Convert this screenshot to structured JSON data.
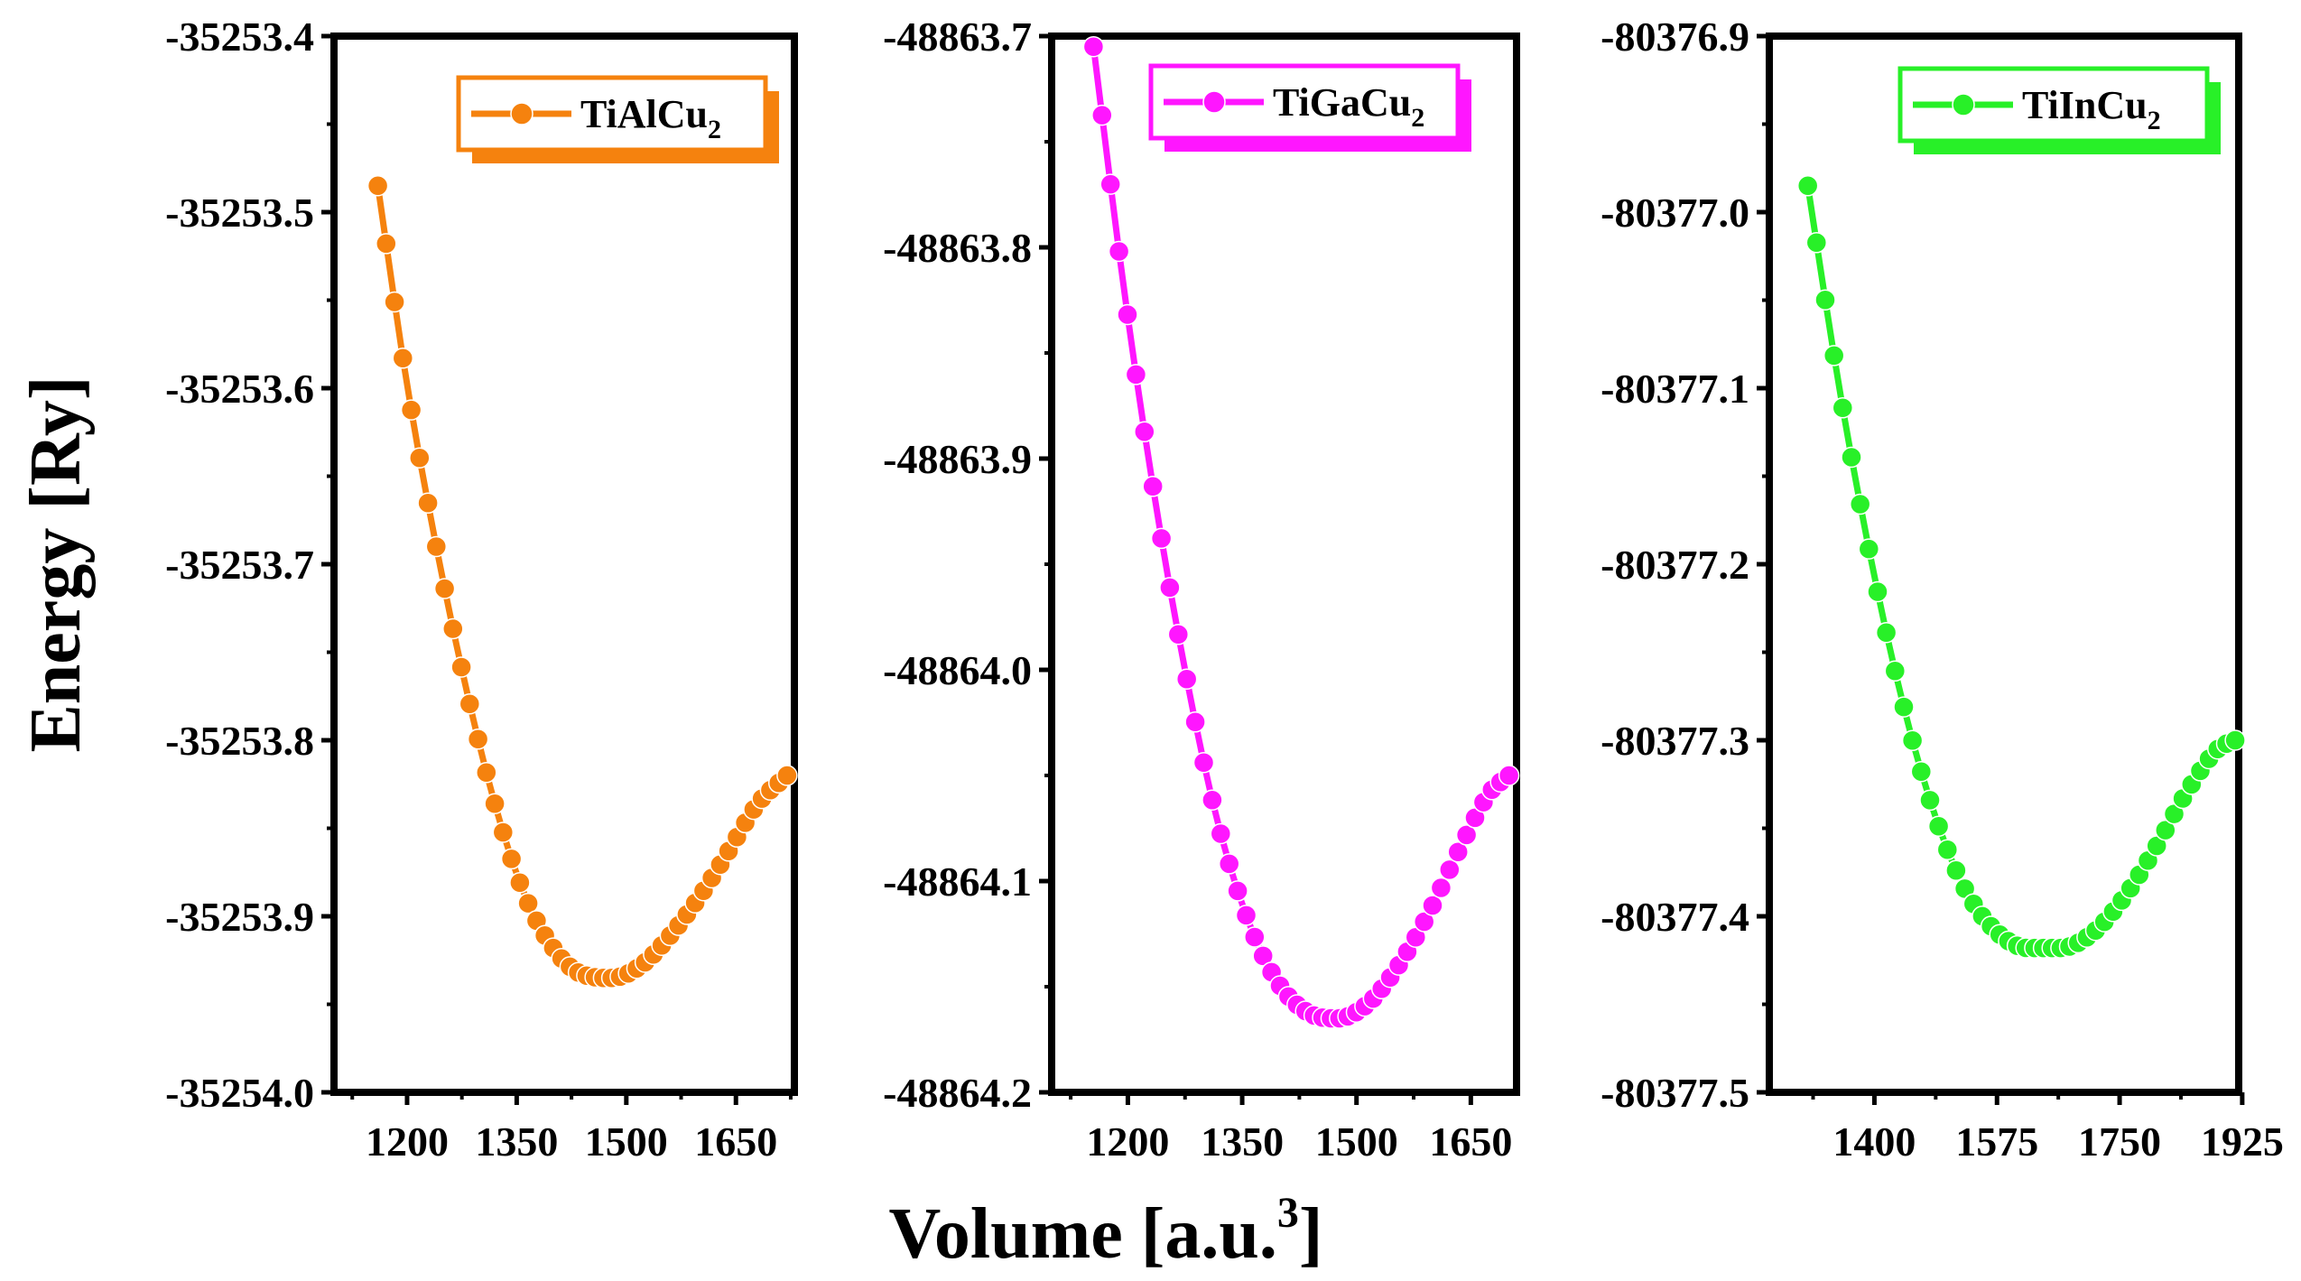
{
  "figure": {
    "ylabel": "Energy [Ry]",
    "xlabel_main": "Volume [a.u.",
    "xlabel_sup": "3",
    "xlabel_end": "]"
  },
  "chart_data": [
    {
      "type": "line",
      "series_name": "TiAlCu2",
      "legend_main": "TiAlCu",
      "legend_sub": "2",
      "color": "#F5820E",
      "xlim": [
        1100,
        1730
      ],
      "ylim": [
        -35254.0,
        -35253.4
      ],
      "xticks": [
        1200,
        1350,
        1500,
        1650
      ],
      "xtick_labels": [
        "1200",
        "1350",
        "1500",
        "1650"
      ],
      "yticks": [
        -35253.4,
        -35253.5,
        -35253.6,
        -35253.7,
        -35253.8,
        -35253.9,
        -35254.0
      ],
      "ytick_labels": [
        "-35253.4",
        "-35253.5",
        "-35253.6",
        "-35253.7",
        "-35253.8",
        "-35253.9",
        "-35254.0"
      ],
      "x_range": [
        1160,
        1720
      ],
      "x_min": 1490,
      "y_min": -35253.935,
      "points": 50,
      "x": [
        1160,
        1200,
        1240,
        1280,
        1320,
        1360,
        1400,
        1440,
        1480,
        1520,
        1560,
        1600,
        1640,
        1680,
        1720
      ],
      "y": [
        -35253.485,
        -35253.598,
        -35253.69,
        -35253.769,
        -35253.836,
        -35253.887,
        -35253.918,
        -35253.933,
        -35253.935,
        -35253.928,
        -35253.911,
        -35253.889,
        -35253.863,
        -35253.836,
        -35253.82
      ]
    },
    {
      "type": "line",
      "series_name": "TiGaCu2",
      "legend_main": "TiGaCu",
      "legend_sub": "2",
      "color": "#FF16FF",
      "xlim": [
        1100,
        1710
      ],
      "ylim": [
        -48864.2,
        -48863.7
      ],
      "xticks": [
        1200,
        1350,
        1500,
        1650
      ],
      "xtick_labels": [
        "1200",
        "1350",
        "1500",
        "1650"
      ],
      "yticks": [
        -48863.7,
        -48863.8,
        -48863.9,
        -48864.0,
        -48864.1,
        -48864.2
      ],
      "ytick_labels": [
        "-48863.7",
        "-48863.8",
        "-48863.9",
        "-48864.0",
        "-48864.1",
        "-48864.2"
      ],
      "x_range": [
        1155,
        1700
      ],
      "x_min": 1485,
      "y_min": -48864.165,
      "points": 50,
      "x": [
        1155,
        1195,
        1235,
        1275,
        1315,
        1355,
        1395,
        1435,
        1475,
        1515,
        1555,
        1595,
        1635,
        1675,
        1700
      ],
      "y": [
        -48863.705,
        -48863.82,
        -48863.918,
        -48864.0,
        -48864.068,
        -48864.116,
        -48864.147,
        -48864.162,
        -48864.165,
        -48864.158,
        -48864.14,
        -48864.115,
        -48864.085,
        -48864.058,
        -48864.05
      ]
    },
    {
      "type": "line",
      "series_name": "TiInCu2",
      "legend_main": "TiInCu",
      "legend_sub": "2",
      "color": "#28F028",
      "xlim": [
        1250,
        1920
      ],
      "ylim": [
        -80377.5,
        -80376.9
      ],
      "xticks": [
        1400,
        1575,
        1750,
        1925
      ],
      "xtick_labels": [
        "1400",
        "1575",
        "1750",
        "1925"
      ],
      "yticks": [
        -80376.9,
        -80377.0,
        -80377.1,
        -80377.2,
        -80377.3,
        -80377.4,
        -80377.5
      ],
      "ytick_labels": [
        "-80376.9",
        "-80377.0",
        "-80377.1",
        "-80377.2",
        "-80377.3",
        "-80377.4",
        "-80377.5"
      ],
      "x_range": [
        1305,
        1915
      ],
      "x_min": 1665,
      "y_min": -80377.418,
      "points": 50,
      "x": [
        1305,
        1350,
        1395,
        1440,
        1485,
        1530,
        1575,
        1620,
        1665,
        1710,
        1755,
        1800,
        1845,
        1890,
        1915
      ],
      "y": [
        -80376.985,
        -80377.1,
        -80377.197,
        -80377.278,
        -80377.341,
        -80377.385,
        -80377.409,
        -80377.418,
        -80377.418,
        -80377.41,
        -80377.39,
        -80377.362,
        -80377.33,
        -80377.305,
        -80377.3
      ]
    }
  ]
}
